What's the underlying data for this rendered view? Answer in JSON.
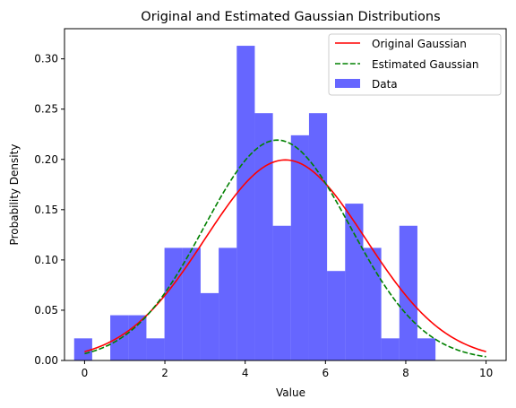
{
  "chart_data": {
    "type": "bar",
    "title": "Original and Estimated Gaussian Distributions",
    "xlabel": "Value",
    "ylabel": "Probability Density",
    "xlim": [
      -0.5,
      10.5
    ],
    "ylim": [
      0,
      0.33
    ],
    "x_ticks": [
      0,
      2,
      4,
      6,
      8,
      10
    ],
    "x_tick_labels": [
      "0",
      "2",
      "4",
      "6",
      "8",
      "10"
    ],
    "y_ticks": [
      0.0,
      0.05,
      0.1,
      0.15,
      0.2,
      0.25,
      0.3
    ],
    "y_tick_labels": [
      "0.00",
      "0.05",
      "0.10",
      "0.15",
      "0.20",
      "0.25",
      "0.30"
    ],
    "legend_position": "top-right",
    "histogram": {
      "name": "Data",
      "color": "#0000ff",
      "alpha": 0.6,
      "bin_edges": [
        -0.26,
        0.19,
        0.64,
        1.09,
        1.54,
        1.99,
        2.44,
        2.89,
        3.34,
        3.79,
        4.24,
        4.69,
        5.14,
        5.59,
        6.04,
        6.49,
        6.94,
        7.39,
        7.84,
        8.29,
        8.74
      ],
      "values": [
        0.022,
        0.0,
        0.045,
        0.045,
        0.022,
        0.112,
        0.112,
        0.067,
        0.112,
        0.313,
        0.246,
        0.134,
        0.224,
        0.246,
        0.089,
        0.156,
        0.112,
        0.022,
        0.134,
        0.022
      ]
    },
    "series": [
      {
        "name": "Original Gaussian",
        "kind": "line",
        "color": "#ff0000",
        "dash": "solid",
        "mean": 5.0,
        "std": 2.0,
        "x_range": [
          0,
          10
        ]
      },
      {
        "name": "Estimated Gaussian",
        "kind": "line",
        "color": "#008000",
        "dash": "dashed",
        "mean": 4.8,
        "std": 1.82,
        "x_range": [
          0,
          10
        ]
      }
    ]
  }
}
